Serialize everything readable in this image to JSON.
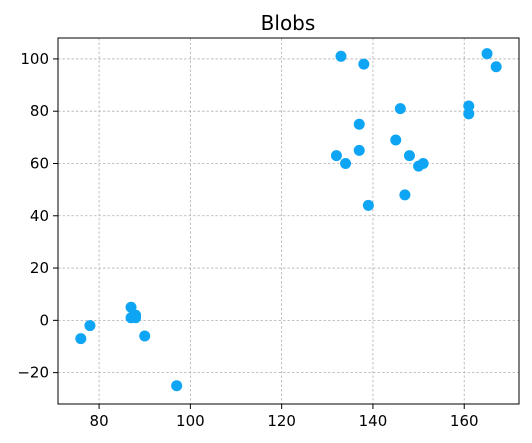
{
  "chart_data": {
    "type": "scatter",
    "title": "Blobs",
    "xlabel": "",
    "ylabel": "",
    "xlim": [
      71,
      172
    ],
    "ylim": [
      -32,
      108
    ],
    "xticks": [
      80,
      100,
      120,
      140,
      160
    ],
    "yticks": [
      -20,
      0,
      20,
      40,
      60,
      80,
      100
    ],
    "grid": true,
    "color": "#0ea5f4",
    "series": [
      {
        "points": [
          {
            "x": 76,
            "y": -7
          },
          {
            "x": 78,
            "y": -2
          },
          {
            "x": 87,
            "y": 5
          },
          {
            "x": 87,
            "y": 1
          },
          {
            "x": 88,
            "y": 2
          },
          {
            "x": 88,
            "y": 1
          },
          {
            "x": 90,
            "y": -6
          },
          {
            "x": 97,
            "y": -25
          },
          {
            "x": 132,
            "y": 63
          },
          {
            "x": 133,
            "y": 101
          },
          {
            "x": 134,
            "y": 60
          },
          {
            "x": 137,
            "y": 75
          },
          {
            "x": 137,
            "y": 65
          },
          {
            "x": 138,
            "y": 98
          },
          {
            "x": 139,
            "y": 44
          },
          {
            "x": 145,
            "y": 69
          },
          {
            "x": 146,
            "y": 81
          },
          {
            "x": 147,
            "y": 48
          },
          {
            "x": 148,
            "y": 63
          },
          {
            "x": 150,
            "y": 59
          },
          {
            "x": 151,
            "y": 60
          },
          {
            "x": 161,
            "y": 82
          },
          {
            "x": 161,
            "y": 79
          },
          {
            "x": 165,
            "y": 102
          },
          {
            "x": 167,
            "y": 97
          }
        ]
      }
    ]
  }
}
